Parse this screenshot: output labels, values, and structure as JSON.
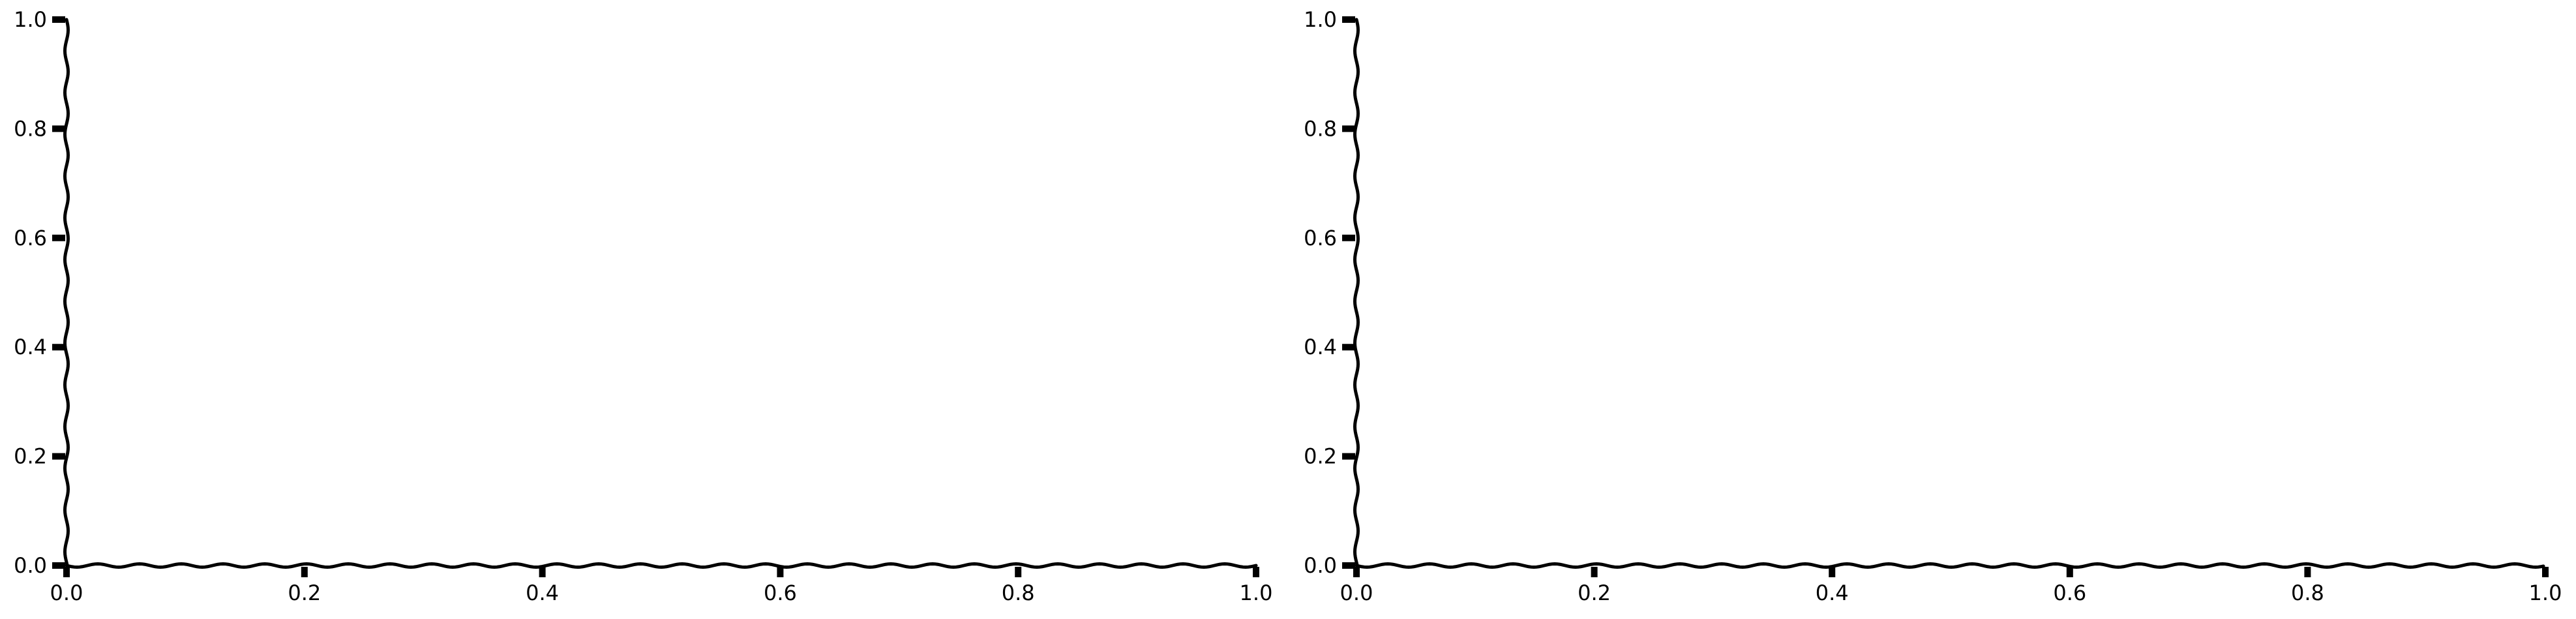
{
  "chart_data": [
    {
      "type": "line",
      "title": "",
      "xlabel": "",
      "ylabel": "",
      "xlim": [
        0.0,
        1.0
      ],
      "ylim": [
        0.0,
        1.0
      ],
      "x_ticks": [
        "0.0",
        "0.2",
        "0.4",
        "0.6",
        "0.8",
        "1.0"
      ],
      "y_ticks": [
        "0.0",
        "0.2",
        "0.4",
        "0.6",
        "0.8",
        "1.0"
      ],
      "series": [],
      "grid": false,
      "style": "xkcd"
    },
    {
      "type": "line",
      "title": "",
      "xlabel": "",
      "ylabel": "",
      "xlim": [
        0.0,
        1.0
      ],
      "ylim": [
        0.0,
        1.0
      ],
      "x_ticks": [
        "0.0",
        "0.2",
        "0.4",
        "0.6",
        "0.8",
        "1.0"
      ],
      "y_ticks": [
        "0.0",
        "0.2",
        "0.4",
        "0.6",
        "0.8",
        "1.0"
      ],
      "series": [],
      "grid": false,
      "style": "xkcd"
    }
  ],
  "colors": {
    "axis": "#000000",
    "background": "#ffffff"
  }
}
